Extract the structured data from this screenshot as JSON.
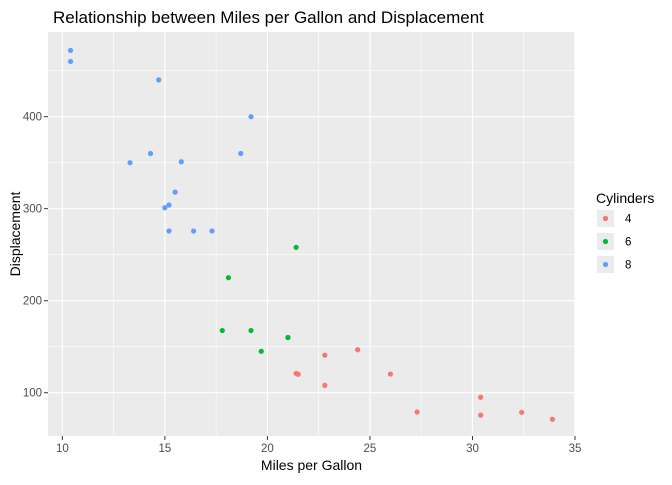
{
  "chart_data": {
    "type": "scatter",
    "title": "Relationship between Miles per Gallon and Displacement",
    "xlabel": "Miles per Gallon",
    "ylabel": "Displacement",
    "xlim": [
      9.3,
      35.0
    ],
    "ylim": [
      53,
      492
    ],
    "x_ticks": [
      10,
      15,
      20,
      25,
      30,
      35
    ],
    "x_tick_labels": [
      "10",
      "15",
      "20",
      "25",
      "30",
      "35"
    ],
    "y_ticks": [
      100,
      200,
      300,
      400
    ],
    "y_tick_labels": [
      "100",
      "200",
      "300",
      "400"
    ],
    "grid": true,
    "legend": {
      "title": "Cylinders",
      "position": "right"
    },
    "series": [
      {
        "name": "4",
        "color": "#F8766D",
        "points": [
          [
            22.8,
            108
          ],
          [
            24.4,
            146.7
          ],
          [
            22.8,
            140.8
          ],
          [
            32.4,
            78.7
          ],
          [
            30.4,
            75.7
          ],
          [
            33.9,
            71.1
          ],
          [
            21.5,
            120.1
          ],
          [
            27.3,
            79
          ],
          [
            26.0,
            120.3
          ],
          [
            30.4,
            95.1
          ],
          [
            21.4,
            121
          ]
        ]
      },
      {
        "name": "6",
        "color": "#00BA38",
        "points": [
          [
            21.0,
            160
          ],
          [
            21.0,
            160
          ],
          [
            21.4,
            258
          ],
          [
            18.1,
            225
          ],
          [
            19.2,
            167.6
          ],
          [
            17.8,
            167.6
          ],
          [
            19.7,
            145
          ]
        ]
      },
      {
        "name": "8",
        "color": "#619CFF",
        "points": [
          [
            18.7,
            360
          ],
          [
            14.3,
            360
          ],
          [
            16.4,
            275.8
          ],
          [
            17.3,
            275.8
          ],
          [
            15.2,
            275.8
          ],
          [
            10.4,
            472
          ],
          [
            10.4,
            460
          ],
          [
            14.7,
            440
          ],
          [
            15.5,
            318
          ],
          [
            15.2,
            304
          ],
          [
            13.3,
            350
          ],
          [
            19.2,
            400
          ],
          [
            15.8,
            351
          ],
          [
            15.0,
            301
          ]
        ]
      }
    ]
  }
}
